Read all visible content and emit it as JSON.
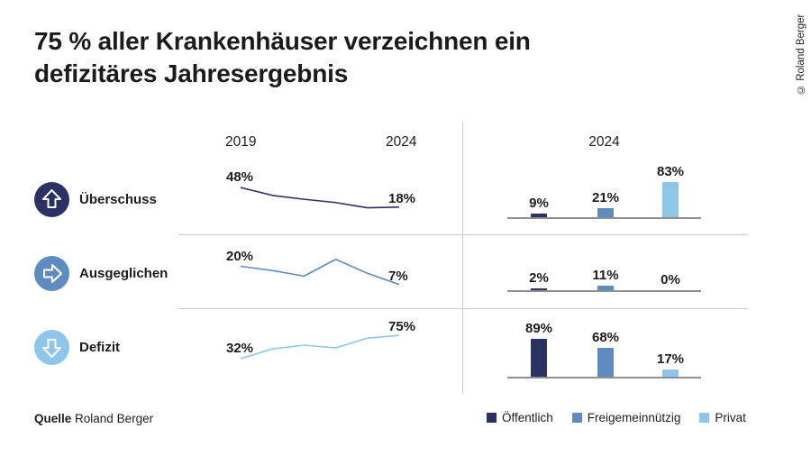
{
  "title_lines": [
    "75 % aller Krankenhäuser verzeichnen ein",
    "defizitäres Jahresergebnis"
  ],
  "copyright": "© Roland Berger",
  "source": {
    "prefix": "Quelle",
    "text": "Roland Berger"
  },
  "headers": {
    "line_start_year": "2019",
    "line_end_year": "2024",
    "bar_year": "2024"
  },
  "rows": [
    {
      "label": "Überschuss",
      "icon": "arrow-up-icon",
      "color": "#2b3263"
    },
    {
      "label": "Ausgeglichen",
      "icon": "arrow-right-icon",
      "color": "#5e8cc0"
    },
    {
      "label": "Defizit",
      "icon": "arrow-down-icon",
      "color": "#8ec6e9"
    }
  ],
  "legend": [
    {
      "label": "Öffentlich",
      "color": "#2b3263"
    },
    {
      "label": "Freigemeinnützig",
      "color": "#5e8cc0"
    },
    {
      "label": "Privat",
      "color": "#8ec6e9"
    }
  ],
  "colors": {
    "divider": "#c9c9c9",
    "baseline": "#8f8f8f",
    "text": "#1b1b1b"
  },
  "chart_data": [
    {
      "type": "line",
      "x": [
        2019,
        2020,
        2021,
        2022,
        2023,
        2024
      ],
      "x_ticks_shown": [
        "2019",
        "2024"
      ],
      "note": "only 2019 and 2024 values are labeled; intermediate values estimated from line shape",
      "series": [
        {
          "name": "Überschuss",
          "values": [
            48,
            36,
            30,
            25,
            17,
            18
          ],
          "labeled": {
            "2019": 48,
            "2024": 18
          },
          "color": "#2b3263",
          "ylim_hint": [
            4,
            66
          ]
        },
        {
          "name": "Ausgeglichen",
          "values": [
            20,
            17,
            13,
            25,
            15,
            7
          ],
          "labeled": {
            "2019": 20,
            "2024": 7
          },
          "color": "#5e8cc0",
          "ylim_hint": [
            1,
            30
          ]
        },
        {
          "name": "Defizit",
          "values": [
            32,
            50,
            57,
            52,
            70,
            75
          ],
          "labeled": {
            "2019": 32,
            "2024": 75
          },
          "color": "#8ec6e9",
          "ylim_hint": [
            12,
            87
          ]
        }
      ],
      "unit": "%"
    },
    {
      "type": "bar",
      "title": "2024",
      "categories": [
        "Öffentlich",
        "Freigemeinnützig",
        "Privat"
      ],
      "category_colors": [
        "#2b3263",
        "#5e8cc0",
        "#8ec6e9"
      ],
      "series": [
        {
          "name": "Überschuss",
          "values": [
            9,
            21,
            83
          ]
        },
        {
          "name": "Ausgeglichen",
          "values": [
            2,
            11,
            0
          ]
        },
        {
          "name": "Defizit",
          "values": [
            89,
            68,
            17
          ]
        }
      ],
      "unit": "%",
      "ylim": [
        0,
        100
      ],
      "grid": false,
      "legend_position": "bottom"
    }
  ]
}
